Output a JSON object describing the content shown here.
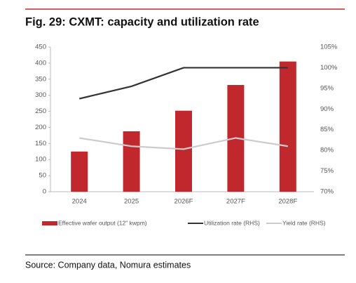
{
  "chart_data": {
    "type": "bar",
    "title": "Fig. 29:  CXMT: capacity and utilization rate",
    "source": "Source: Company data, Nomura estimates",
    "categories": [
      "2024",
      "2025",
      "2026F",
      "2027F",
      "2028F"
    ],
    "series": [
      {
        "name": "Effective wafer output (12\" kwpm)",
        "type": "bar",
        "color": "#c0282d",
        "values": [
          125,
          188,
          252,
          332,
          405
        ]
      },
      {
        "name": "Utilization rate (RHS)",
        "type": "line",
        "axis": "y2",
        "color": "#333333",
        "values": [
          92.5,
          95.5,
          100,
          100,
          100
        ]
      },
      {
        "name": "Yield rate (RHS)",
        "type": "line",
        "axis": "y2",
        "color": "#cccccc",
        "values": [
          83,
          81,
          80.3,
          83,
          81
        ]
      }
    ],
    "ylim": [
      0,
      450
    ],
    "yticks": [
      0,
      50,
      100,
      150,
      200,
      250,
      300,
      350,
      400,
      450
    ],
    "y2lim": [
      70,
      105
    ],
    "y2ticks": [
      {
        "value": 70,
        "label": "70%"
      },
      {
        "value": 75,
        "label": "75%"
      },
      {
        "value": 80,
        "label": "80%"
      },
      {
        "value": 85,
        "label": "85%"
      },
      {
        "value": 90,
        "label": "90%"
      },
      {
        "value": 95,
        "label": "95%"
      },
      {
        "value": 100,
        "label": "100%"
      },
      {
        "value": 105,
        "label": "105%"
      }
    ],
    "grid": false,
    "legend": "bottom"
  }
}
